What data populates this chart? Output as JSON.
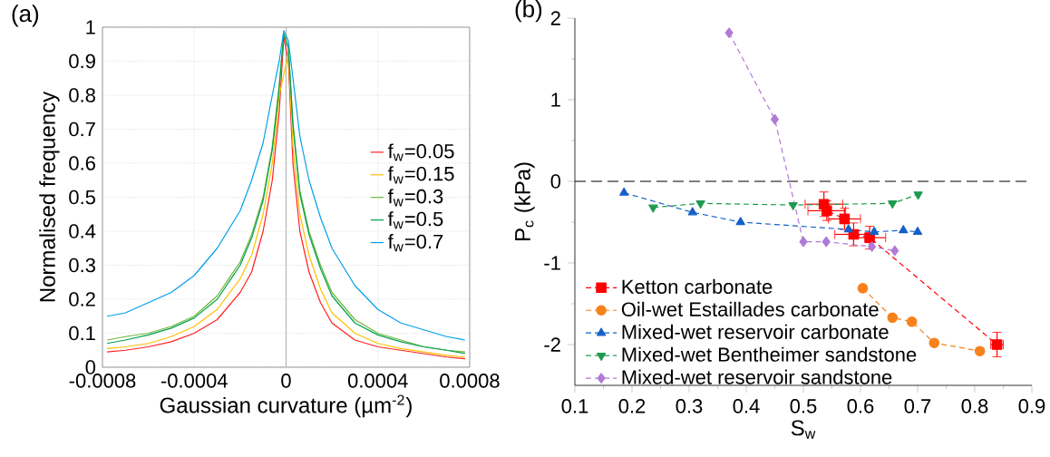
{
  "chart_data": [
    {
      "type": "line",
      "title": "(a)",
      "xlabel": "Gaussian curvature (µm$^{-2}$)",
      "ylabel": "Normalised frequency",
      "x": [
        -0.00078,
        -0.0007,
        -0.0006,
        -0.0005,
        -0.0004,
        -0.0003,
        -0.0002,
        -0.00015,
        -0.0001,
        -6e-05,
        -3e-05,
        -1e-05,
        1e-05,
        3e-05,
        6e-05,
        0.0001,
        0.00015,
        0.0002,
        0.0003,
        0.0004,
        0.0005,
        0.0006,
        0.0007,
        0.00078
      ],
      "series": [
        {
          "name": "f$_{w}$=0.05",
          "color": "#ff2020",
          "values": [
            0.045,
            0.05,
            0.06,
            0.075,
            0.1,
            0.14,
            0.22,
            0.28,
            0.4,
            0.55,
            0.75,
            0.97,
            0.9,
            0.6,
            0.4,
            0.28,
            0.19,
            0.13,
            0.08,
            0.06,
            0.05,
            0.04,
            0.03,
            0.025
          ]
        },
        {
          "name": "f$_{w}$=0.15",
          "color": "#ffc000",
          "values": [
            0.055,
            0.06,
            0.07,
            0.09,
            0.12,
            0.17,
            0.26,
            0.33,
            0.45,
            0.6,
            0.8,
            null,
            0.92,
            0.65,
            0.45,
            0.33,
            0.23,
            0.16,
            0.1,
            0.07,
            0.055,
            0.045,
            0.035,
            0.03
          ]
        },
        {
          "name": "f$_{w}$=0.3",
          "color": "#70b838",
          "values": [
            0.08,
            0.09,
            0.1,
            0.12,
            0.15,
            0.21,
            0.31,
            0.39,
            0.5,
            0.65,
            0.83,
            0.98,
            0.94,
            0.72,
            0.52,
            0.4,
            0.3,
            0.22,
            0.14,
            0.1,
            0.08,
            0.06,
            0.05,
            0.045
          ]
        },
        {
          "name": "f$_{w}$=0.5",
          "color": "#00a050",
          "values": [
            0.07,
            0.08,
            0.095,
            0.115,
            0.145,
            0.2,
            0.3,
            0.38,
            0.49,
            0.64,
            0.82,
            0.98,
            0.94,
            0.71,
            0.51,
            0.39,
            0.29,
            0.21,
            0.13,
            0.095,
            0.075,
            0.06,
            0.05,
            0.04
          ]
        },
        {
          "name": "f$_{w}$=0.7",
          "color": "#00a0e8",
          "values": [
            0.15,
            0.16,
            0.19,
            0.22,
            0.27,
            0.35,
            0.46,
            0.55,
            0.66,
            0.8,
            0.9,
            0.99,
            0.96,
            0.85,
            0.68,
            0.55,
            0.44,
            0.35,
            0.24,
            0.17,
            0.13,
            0.11,
            0.09,
            0.08
          ]
        }
      ],
      "xlim": [
        -0.0008,
        0.0008
      ],
      "ylim": [
        0,
        1
      ],
      "xticks": [
        -0.0008,
        -0.0004,
        0,
        0.0004,
        0.0008
      ],
      "yticks": [
        0,
        0.1,
        0.2,
        0.3,
        0.4,
        0.5,
        0.6,
        0.7,
        0.8,
        0.9,
        1
      ],
      "grid": true,
      "legend": "right",
      "ref_lines": [
        {
          "axis": "x",
          "value": 0,
          "color": "#b4b4b4",
          "line_style": "solid"
        }
      ]
    },
    {
      "type": "line",
      "title": "(b)",
      "xlabel": "S$_{w}$",
      "ylabel": "P$_{c}$ (kPa)",
      "series": [
        {
          "name": "Ketton carbonate",
          "color": "#ff0000",
          "marker": "square",
          "x": [
            0.536,
            0.541,
            0.572,
            0.588,
            0.616,
            0.839
          ],
          "values": [
            -0.28,
            -0.36,
            -0.46,
            -0.65,
            -0.69,
            -2.0
          ],
          "errors": [
            0.15,
            0.12,
            0.13,
            0.14,
            0.14,
            0.15
          ],
          "xerrors": [
            0.033,
            0.033,
            0.028,
            0.033,
            0.028,
            0.011
          ]
        },
        {
          "name": "Oil-wet Estaillades carbonate",
          "color": "#f7821b",
          "marker": "circle",
          "x": [
            0.604,
            0.656,
            0.69,
            0.729,
            0.809
          ],
          "values": [
            -1.31,
            -1.67,
            -1.72,
            -1.98,
            -2.08
          ]
        },
        {
          "name": "Mixed-wet reservoir carbonate",
          "color": "#1560c8",
          "marker": "triangle",
          "x": [
            0.186,
            0.306,
            0.39,
            0.579,
            0.624,
            0.675,
            0.7
          ],
          "values": [
            -0.14,
            -0.38,
            -0.5,
            -0.59,
            -0.62,
            -0.6,
            -0.62
          ]
        },
        {
          "name": "Mixed-wet Bentheimer sandstone",
          "color": "#1f9a50",
          "marker": "triangle-down",
          "x": [
            0.237,
            0.32,
            0.482,
            0.656,
            0.701
          ],
          "values": [
            -0.32,
            -0.27,
            -0.29,
            -0.27,
            -0.16
          ]
        },
        {
          "name": "Mixed-wet reservoir sandstone",
          "color": "#b07ad8",
          "marker": "diamond",
          "x": [
            0.37,
            0.45,
            0.5,
            0.54,
            0.62,
            0.66
          ],
          "values": [
            1.82,
            0.76,
            -0.74,
            -0.74,
            -0.8,
            -0.85
          ]
        }
      ],
      "xlim": [
        0.1,
        0.9
      ],
      "ylim": [
        -2.5,
        2
      ],
      "xticks": [
        0.1,
        0.2,
        0.3,
        0.4,
        0.5,
        0.6,
        0.7,
        0.8,
        0.9
      ],
      "yticks": [
        -2,
        -1,
        0,
        1,
        2
      ],
      "legend": "bottom left",
      "line_style": "dashed",
      "ref_lines": [
        {
          "axis": "y",
          "value": 0,
          "color": "#000000",
          "line_style": "dashed"
        }
      ]
    }
  ]
}
